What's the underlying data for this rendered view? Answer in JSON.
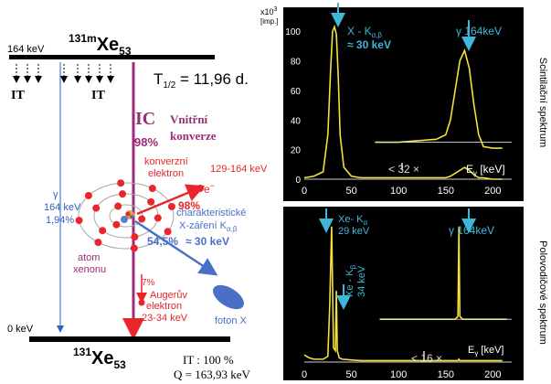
{
  "decay_scheme": {
    "top_level_energy": "164 keV",
    "parent_mass": "131m",
    "parent_symbol": "Xe",
    "parent_z": "53",
    "half_life": "T",
    "half_life_sub": "1/2",
    "half_life_value": " = 11,96 d.",
    "it_left": "IT",
    "it_right": "IT",
    "ic_label": "IC",
    "ic_percent": "98%",
    "internal_conversion_line1": "Vnitřní",
    "internal_conversion_line2": "konverze",
    "gamma_symbol": "γ",
    "gamma_energy": "164 keV",
    "gamma_percent": "1,94%",
    "conversion_electron_line1": "konverzní",
    "conversion_electron_line2": "elektron",
    "conversion_electron_energy": "129-164 keV",
    "conversion_electron_percent": "98%",
    "electron_symbol": "e",
    "electron_charge": "−",
    "atom_label_line1": "atom",
    "atom_label_line2": "xenonu",
    "xray_line1": "charakteristické",
    "xray_line2": "X-záření K",
    "xray_line2_sub": "α,β",
    "xray_percent": "54,5%",
    "xray_energy": "≈ 30 keV",
    "auger_percent": "7%",
    "auger_line1": "Augerův",
    "auger_line2": "elektron",
    "auger_energy": "23-34 keV",
    "photon_label": "foton X",
    "ground_level_energy": "0 keV",
    "daughter_mass": "131",
    "daughter_symbol": "Xe",
    "daughter_z": "53",
    "it_total": "IT : 100 %",
    "q_value": "Q = 163,93 keV",
    "colors": {
      "level": "#000000",
      "ic": "#9b2c7a",
      "gamma": "#2f5fc4",
      "conversion": "#e8262b",
      "xray": "#4a6fc7",
      "atom": "#e8262b"
    }
  },
  "spectra": [
    {
      "side_label": "Scintilační spektrum",
      "y_multiplier": "x10",
      "y_multiplier_exp": "3",
      "y_unit": "[imp.]",
      "y_ticks": [
        "0",
        "20",
        "40",
        "60",
        "80",
        "100"
      ],
      "x_ticks": [
        "0",
        "50",
        "100",
        "150",
        "200"
      ],
      "x_label": "E",
      "x_label_sub": "γ",
      "x_label_unit": " [keV]",
      "peak1_line1": "X - K",
      "peak1_line1_sub": "α,β",
      "peak1_line2": "≈ 30 keV",
      "peak2_label": "γ 164keV",
      "zoom_label": "32 ×"
    },
    {
      "side_label": "Polovodičové spektrum",
      "x_ticks": [
        "0",
        "50",
        "100",
        "150",
        "200"
      ],
      "x_label": "E",
      "x_label_sub": "γ",
      "x_label_unit": " [keV]",
      "peak1_line1": "Xe- K",
      "peak1_line1_sub": "α",
      "peak1_line2": "29 keV",
      "peak2_line1": "Xe - K",
      "peak2_line1_sub": "β",
      "peak2_line2": "34 keV",
      "peak3_label": "γ 164keV",
      "zoom_label": "16 ×"
    }
  ],
  "chart_data": [
    {
      "type": "line",
      "title": "Scintilační spektrum",
      "xlabel": "Eγ [keV]",
      "ylabel": "x10^3 [imp.]",
      "xlim": [
        0,
        220
      ],
      "ylim": [
        0,
        110
      ],
      "series": [
        {
          "name": "",
          "x": [
            0,
            10,
            20,
            25,
            28,
            30,
            32,
            34,
            36,
            38,
            42,
            50,
            60,
            80,
            100,
            120,
            140,
            150,
            155,
            160,
            165,
            170,
            175,
            180,
            185,
            190,
            200,
            210
          ],
          "y": [
            1,
            2,
            5,
            30,
            75,
            100,
            103,
            98,
            70,
            30,
            8,
            2,
            1,
            1,
            1,
            1,
            1,
            1,
            2,
            4,
            6,
            8,
            6,
            3,
            1,
            1,
            0,
            0
          ]
        },
        {
          "name": "32 ×",
          "x": [
            75,
            100,
            120,
            140,
            150,
            155,
            160,
            165,
            170,
            175,
            180,
            185,
            190,
            200,
            210
          ],
          "y": [
            25,
            25,
            26,
            27,
            30,
            40,
            60,
            80,
            87,
            75,
            50,
            30,
            22,
            21,
            21
          ]
        }
      ]
    },
    {
      "type": "line",
      "title": "Polovodičové spektrum",
      "xlabel": "Eγ [keV]",
      "xlim": [
        0,
        220
      ],
      "ylim": [
        0,
        100
      ],
      "series": [
        {
          "name": "",
          "x": [
            0,
            5,
            10,
            20,
            25,
            27,
            29,
            31,
            33,
            34,
            35,
            37,
            40,
            60,
            100,
            150,
            160,
            163,
            164,
            165,
            168,
            180,
            210
          ],
          "y": [
            5,
            3,
            2,
            2,
            4,
            40,
            95,
            10,
            8,
            50,
            8,
            3,
            2,
            1,
            1,
            1,
            1,
            1,
            2,
            1,
            1,
            1,
            1
          ]
        },
        {
          "name": "16 ×",
          "x": [
            80,
            100,
            140,
            160,
            163,
            164,
            165,
            168,
            190,
            215
          ],
          "y": [
            30,
            30,
            30,
            30,
            32,
            95,
            32,
            30,
            30,
            30
          ]
        }
      ]
    }
  ]
}
